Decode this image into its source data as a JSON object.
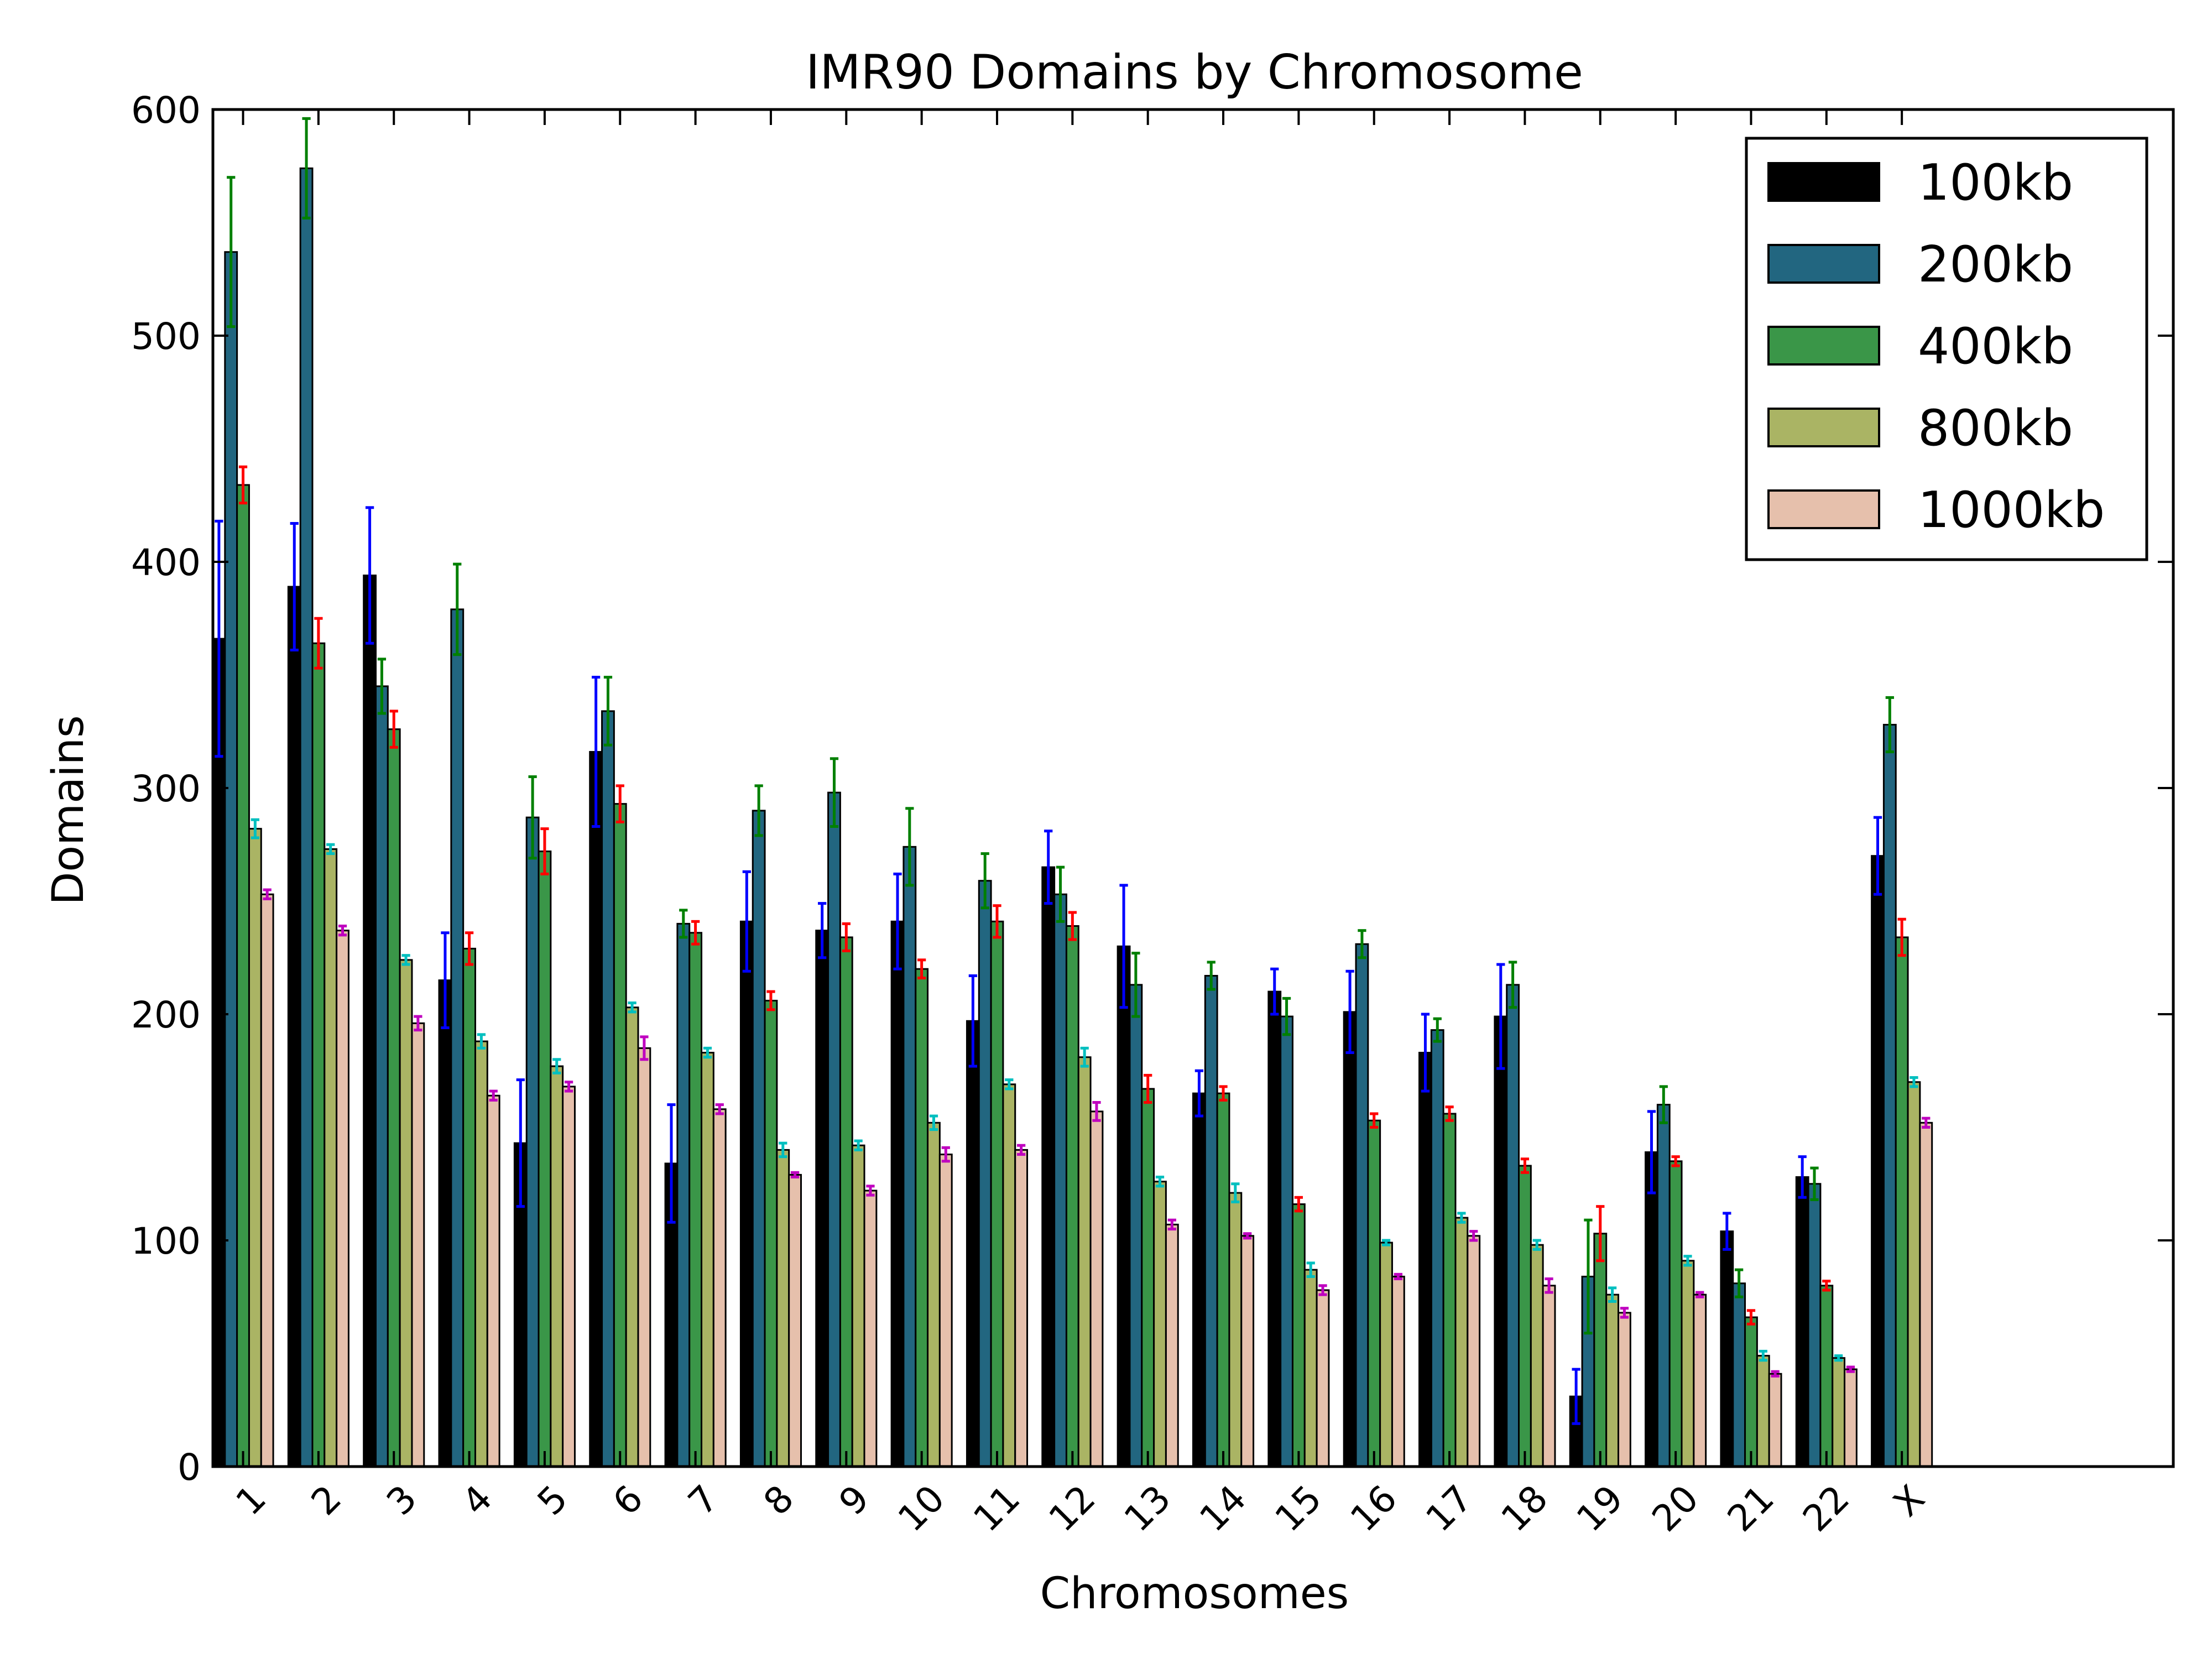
{
  "chart_data": {
    "type": "bar",
    "title": "IMR90 Domains by Chromosome",
    "xlabel": "Chromosomes",
    "ylabel": "Domains",
    "ylim": [
      0,
      600
    ],
    "yticks": [
      0,
      100,
      200,
      300,
      400,
      500,
      600
    ],
    "xlim_extra_slots": 3,
    "grid": false,
    "legend_position": "top-right",
    "categories": [
      "1",
      "2",
      "3",
      "4",
      "5",
      "6",
      "7",
      "8",
      "9",
      "10",
      "11",
      "12",
      "13",
      "14",
      "15",
      "16",
      "17",
      "18",
      "19",
      "20",
      "21",
      "22",
      "X"
    ],
    "series": [
      {
        "name": "100kb",
        "color": "#000000",
        "error_color": "#0000ff",
        "values": [
          366,
          389,
          394,
          215,
          143,
          316,
          134,
          241,
          237,
          241,
          197,
          265,
          230,
          165,
          210,
          201,
          183,
          199,
          31,
          139,
          104,
          128,
          270
        ],
        "errors": [
          52,
          28,
          30,
          21,
          28,
          33,
          26,
          22,
          12,
          21,
          20,
          16,
          27,
          10,
          10,
          18,
          17,
          23,
          12,
          18,
          8,
          9,
          17
        ]
      },
      {
        "name": "200kb",
        "color": "#226680",
        "error_color": "#008000",
        "values": [
          537,
          574,
          345,
          379,
          287,
          334,
          240,
          290,
          298,
          274,
          259,
          253,
          213,
          217,
          199,
          231,
          193,
          213,
          84,
          160,
          81,
          125,
          328
        ],
        "errors": [
          33,
          22,
          12,
          20,
          18,
          15,
          6,
          11,
          15,
          17,
          12,
          12,
          14,
          6,
          8,
          6,
          5,
          10,
          25,
          8,
          6,
          7,
          12
        ]
      },
      {
        "name": "400kb",
        "color": "#3a9648",
        "error_color": "#ff0000",
        "values": [
          434,
          364,
          326,
          229,
          272,
          293,
          236,
          206,
          234,
          220,
          241,
          239,
          167,
          165,
          116,
          153,
          156,
          133,
          103,
          135,
          66,
          80,
          234
        ],
        "errors": [
          8,
          11,
          8,
          7,
          10,
          8,
          5,
          4,
          6,
          4,
          7,
          6,
          6,
          3,
          3,
          3,
          3,
          3,
          12,
          2,
          3,
          2,
          8
        ]
      },
      {
        "name": "800kb",
        "color": "#aab464",
        "error_color": "#00bfbf",
        "values": [
          282,
          273,
          224,
          188,
          177,
          203,
          183,
          140,
          142,
          152,
          169,
          181,
          126,
          121,
          87,
          99,
          110,
          98,
          76,
          91,
          49,
          48,
          170
        ],
        "errors": [
          4,
          2,
          2,
          3,
          3,
          2,
          2,
          3,
          2,
          3,
          2,
          4,
          2,
          4,
          3,
          1,
          2,
          2,
          3,
          2,
          2,
          1,
          2
        ]
      },
      {
        "name": "1000kb",
        "color": "#e6c0ac",
        "error_color": "#bf00bf",
        "values": [
          253,
          237,
          196,
          164,
          168,
          185,
          158,
          129,
          122,
          138,
          140,
          157,
          107,
          102,
          78,
          84,
          102,
          80,
          68,
          76,
          41,
          43,
          152
        ],
        "errors": [
          2,
          2,
          3,
          2,
          2,
          5,
          2,
          1,
          2,
          3,
          2,
          4,
          2,
          1,
          2,
          1,
          2,
          3,
          2,
          1,
          1,
          1,
          2
        ]
      }
    ]
  }
}
